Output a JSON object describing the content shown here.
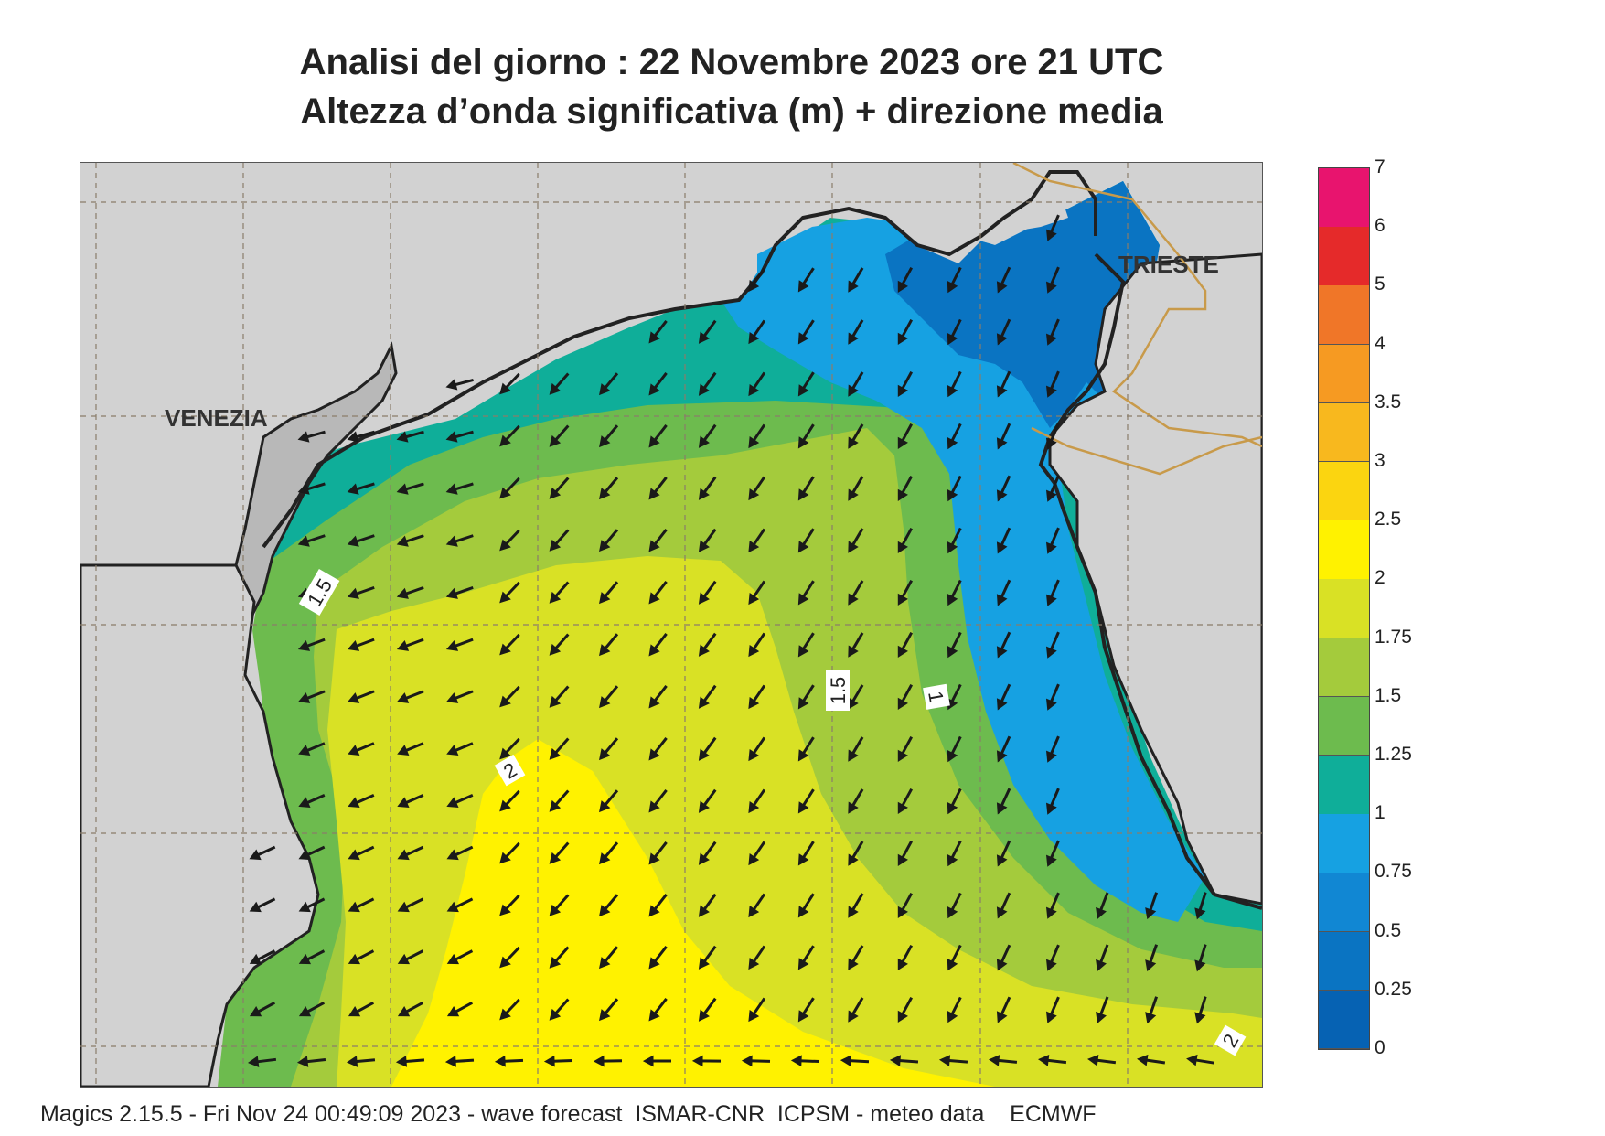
{
  "title": {
    "line1": "Analisi del giorno :  22 Novembre  2023   ore 21 UTC",
    "line2": "Altezza d’onda significativa (m) + direzione media"
  },
  "cities": {
    "venezia": "VENEZIA",
    "trieste": "TRIESTE"
  },
  "contour_labels": [
    "1.5",
    "2",
    "1.5",
    "1",
    "2"
  ],
  "legend": {
    "values": [
      "7",
      "6",
      "5",
      "4",
      "3.5",
      "3",
      "2.5",
      "2",
      "1.75",
      "1.5",
      "1.25",
      "1",
      "0.75",
      "0.5",
      "0.25",
      "0"
    ],
    "colors": [
      "#e8146e",
      "#e52a2a",
      "#f07628",
      "#f69a22",
      "#f8b81e",
      "#fbd510",
      "#fff200",
      "#d9e125",
      "#a4cb3c",
      "#6dbb4e",
      "#0fae99",
      "#16a1e2",
      "#1187d3",
      "#0a74c2",
      "#0662b3"
    ]
  },
  "footer": "Magics 2.15.5 - Fri Nov 24 00:49:09 2023 - wave forecast  ISMAR-CNR  ICPSM - meteo data    ECMWF"
}
